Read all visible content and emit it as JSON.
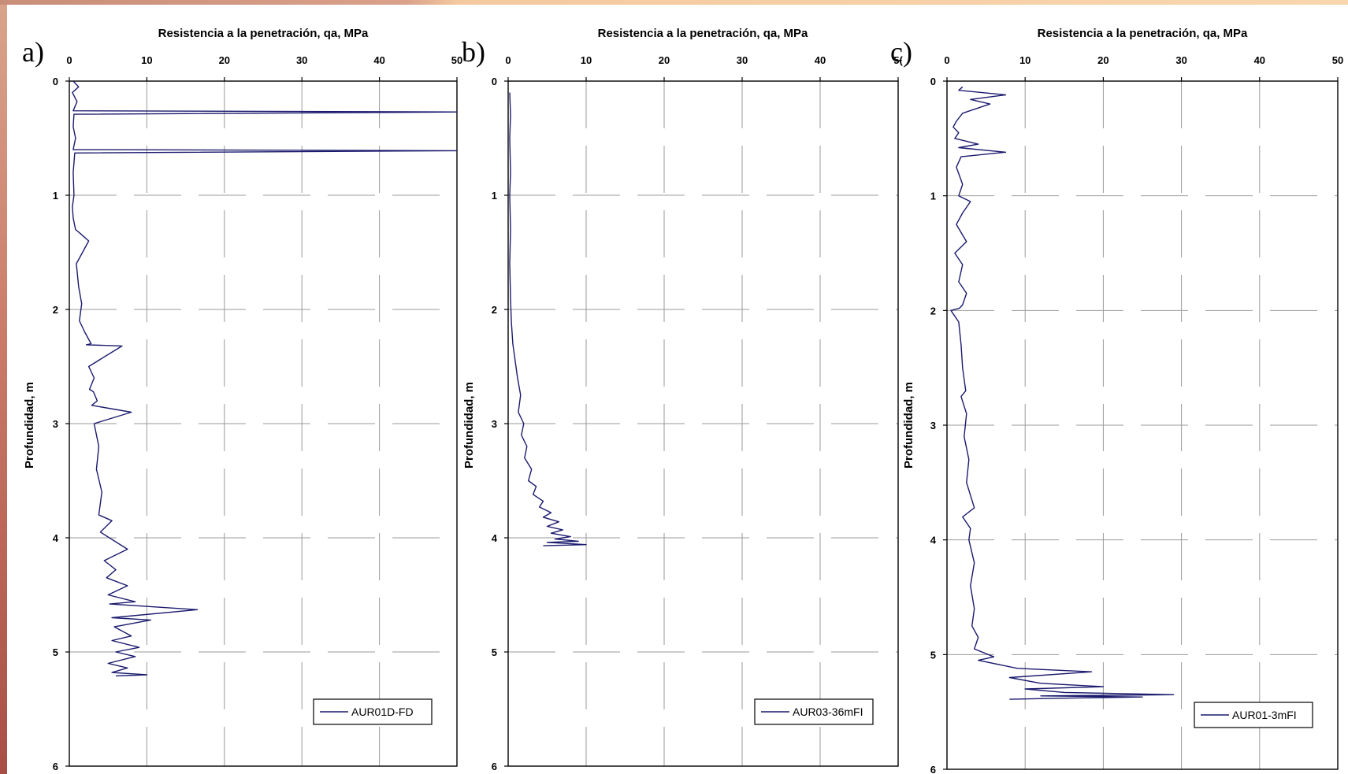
{
  "chart_data": [
    {
      "type": "line",
      "panel_label": "a)",
      "title": "",
      "xlabel": "Resistencia a la penetración, qa, MPa",
      "ylabel": "Profundidad, m",
      "xlim": [
        0,
        50
      ],
      "ylim": [
        0,
        6
      ],
      "y_inverted": true,
      "x_axis_position": "top",
      "xticks": [
        "0",
        "10",
        "20",
        "30",
        "40",
        "50"
      ],
      "yticks": [
        "0",
        "1",
        "2",
        "3",
        "4",
        "5",
        "6"
      ],
      "grid": "dashed",
      "legend_placement": "bottom-right",
      "line_color": "#1a1a6e",
      "series": [
        {
          "name": "AUR01D-FD",
          "x": [
            0.5,
            1.2,
            0.4,
            1.0,
            0.5,
            50,
            0.6,
            0.5,
            0.8,
            0.5,
            50,
            0.7,
            0.5,
            0.6,
            0.4,
            0.5,
            0.8,
            1.5,
            2.5,
            0.9,
            1.2,
            1.6,
            1.3,
            2.0,
            2.8,
            2.2,
            6.8,
            2.5,
            3.2,
            2.6,
            3.1,
            3.6,
            2.9,
            8.0,
            3.2,
            3.8,
            3.5,
            4.2,
            3.8,
            5.5,
            4.0,
            7.5,
            4.5,
            6.0,
            4.8,
            7.5,
            5.0,
            8.5,
            5.2,
            16.5,
            5.5,
            10.5,
            5.8,
            8.0,
            5.5,
            9.0,
            6.0,
            8.5,
            5.0,
            7.5,
            5.5,
            10.0,
            6.0
          ],
          "y": [
            0.0,
            0.05,
            0.1,
            0.18,
            0.26,
            0.27,
            0.29,
            0.4,
            0.5,
            0.6,
            0.61,
            0.63,
            0.8,
            1.0,
            1.1,
            1.2,
            1.3,
            1.34,
            1.4,
            1.6,
            1.8,
            1.95,
            2.1,
            2.2,
            2.3,
            2.31,
            2.32,
            2.5,
            2.6,
            2.7,
            2.72,
            2.8,
            2.84,
            2.9,
            3.0,
            3.2,
            3.4,
            3.6,
            3.8,
            3.85,
            3.95,
            4.1,
            4.2,
            4.28,
            4.35,
            4.42,
            4.5,
            4.56,
            4.58,
            4.63,
            4.7,
            4.72,
            4.78,
            4.86,
            4.9,
            4.96,
            5.0,
            5.04,
            5.1,
            5.14,
            5.18,
            5.2,
            5.21
          ]
        }
      ]
    },
    {
      "type": "line",
      "panel_label": "b)",
      "title": "",
      "xlabel": "Resistencia a la penetración, qa, MPa",
      "ylabel": "Profundidad, m",
      "xlim": [
        0,
        50
      ],
      "ylim": [
        0,
        6
      ],
      "y_inverted": true,
      "x_axis_position": "top",
      "xticks": [
        "0",
        "10",
        "20",
        "30",
        "40",
        "5("
      ],
      "yticks": [
        "0",
        "1",
        "2",
        "3",
        "4",
        "5",
        "6"
      ],
      "grid": "dashed",
      "legend_placement": "bottom-right",
      "line_color": "#1a1a6e",
      "series": [
        {
          "name": "AUR03-36mFI",
          "x": [
            0.2,
            0.3,
            0.2,
            0.3,
            0.2,
            0.3,
            0.2,
            0.3,
            0.4,
            0.6,
            0.9,
            1.2,
            1.6,
            1.3,
            2.0,
            1.7,
            2.4,
            2.1,
            3.0,
            2.6,
            3.6,
            3.2,
            4.5,
            4.0,
            5.5,
            4.5,
            6.5,
            5.0,
            7.0,
            5.5,
            8.0,
            6.0,
            9.0,
            5.0,
            10.0,
            4.5
          ],
          "y": [
            0.1,
            0.3,
            0.5,
            0.8,
            1.0,
            1.3,
            1.6,
            1.9,
            2.1,
            2.3,
            2.45,
            2.6,
            2.75,
            2.9,
            3.0,
            3.1,
            3.2,
            3.3,
            3.4,
            3.5,
            3.55,
            3.62,
            3.68,
            3.73,
            3.78,
            3.82,
            3.86,
            3.9,
            3.93,
            3.96,
            3.99,
            4.01,
            4.03,
            4.04,
            4.06,
            4.07
          ]
        }
      ]
    },
    {
      "type": "line",
      "panel_label": "c)",
      "title": "",
      "xlabel": "Resistencia a la penetración, qa, MPa",
      "ylabel": "Profundidad, m",
      "xlim": [
        0,
        50
      ],
      "ylim": [
        0,
        6
      ],
      "y_inverted": true,
      "x_axis_position": "top",
      "xticks": [
        "0",
        "10",
        "20",
        "30",
        "40",
        "50"
      ],
      "yticks": [
        "0",
        "1",
        "2",
        "3",
        "4",
        "5",
        "6"
      ],
      "grid": "dashed",
      "legend_placement": "bottom-right",
      "line_color": "#1a1a6e",
      "series": [
        {
          "name": "AUR01-3mFI",
          "x": [
            2.0,
            1.5,
            7.5,
            3.0,
            5.5,
            2.0,
            1.2,
            0.8,
            1.5,
            1.0,
            4.0,
            1.5,
            7.5,
            1.8,
            1.2,
            2.0,
            1.5,
            3.0,
            2.0,
            1.2,
            2.5,
            1.0,
            2.0,
            1.5,
            2.5,
            2.0,
            1.6,
            0.5,
            1.5,
            1.8,
            2.0,
            2.4,
            1.8,
            2.5,
            2.2,
            2.8,
            2.5,
            3.5,
            2.0,
            3.0,
            2.8,
            3.5,
            3.0,
            3.5,
            3.2,
            4.0,
            3.5,
            6.0,
            4.0,
            9.0,
            18.5,
            8.0,
            12.0,
            20.0,
            10.0,
            15.0,
            29.0,
            12.0,
            25.0,
            15.0,
            8.0
          ],
          "y": [
            0.05,
            0.08,
            0.12,
            0.16,
            0.2,
            0.28,
            0.35,
            0.4,
            0.45,
            0.5,
            0.55,
            0.58,
            0.62,
            0.66,
            0.75,
            0.9,
            1.0,
            1.05,
            1.15,
            1.25,
            1.4,
            1.5,
            1.6,
            1.75,
            1.85,
            1.95,
            1.98,
            2.0,
            2.1,
            2.3,
            2.5,
            2.7,
            2.75,
            2.9,
            3.1,
            3.3,
            3.5,
            3.72,
            3.8,
            3.9,
            4.0,
            4.2,
            4.4,
            4.6,
            4.75,
            4.85,
            4.95,
            5.02,
            5.05,
            5.12,
            5.15,
            5.2,
            5.25,
            5.28,
            5.3,
            5.33,
            5.35,
            5.36,
            5.37,
            5.38,
            5.39
          ]
        }
      ]
    }
  ]
}
